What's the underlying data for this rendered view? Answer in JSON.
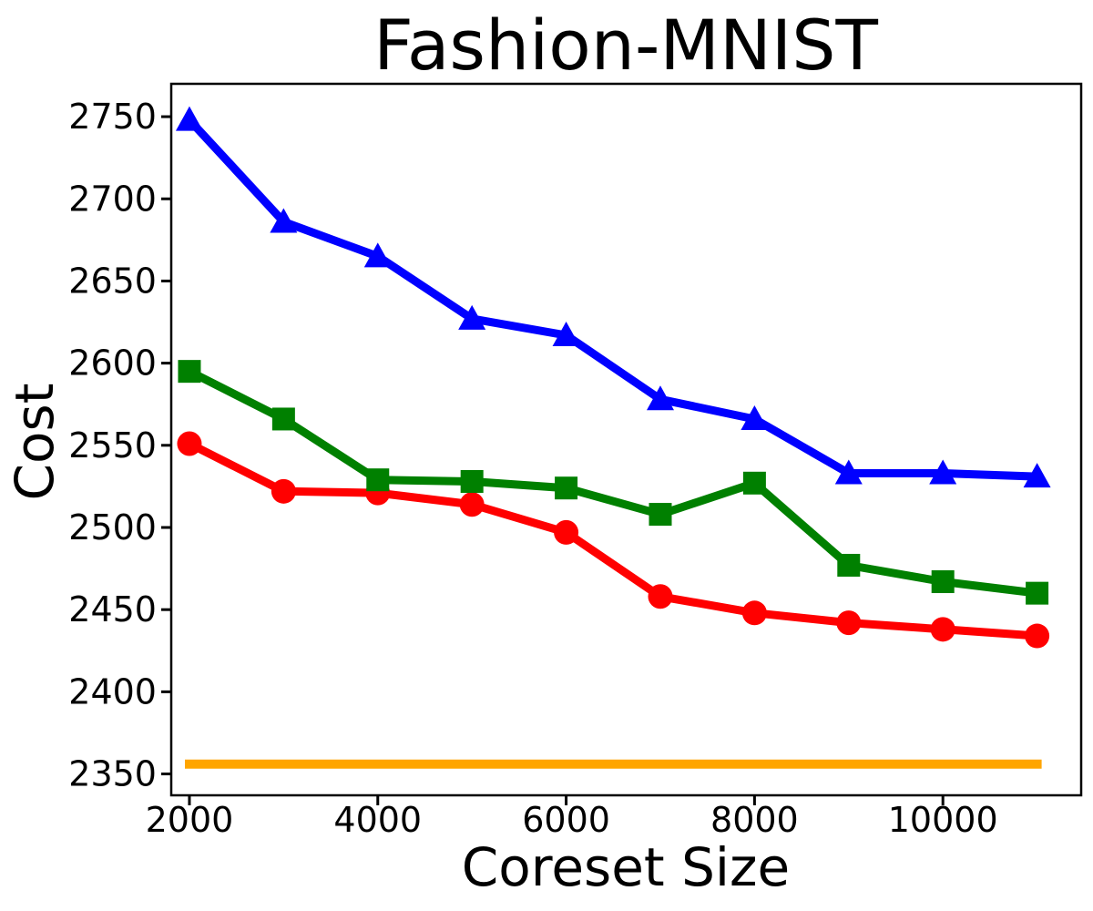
{
  "figure": {
    "background": "#ffffff",
    "axes_frame_color": "#000000"
  },
  "chart_data": {
    "type": "line",
    "title": "Fashion-MNIST",
    "xlabel": "Coreset Size",
    "ylabel": "Cost",
    "grid": false,
    "legend": "none",
    "frame": true,
    "x": [
      2000,
      3000,
      4000,
      5000,
      6000,
      7000,
      8000,
      9000,
      10000,
      11000
    ],
    "series": [
      {
        "name": "orange-baseline",
        "marker": "none",
        "color": "#FFA500",
        "values": [
          2356,
          2356,
          2356,
          2356,
          2356,
          2356,
          2356,
          2356,
          2356,
          2356
        ]
      },
      {
        "name": "red-circle-series",
        "marker": "circle",
        "color": "#FF0000",
        "values": [
          2551,
          2522,
          2521,
          2514,
          2497,
          2458,
          2448,
          2442,
          2438,
          2434
        ]
      },
      {
        "name": "green-square-series",
        "marker": "square",
        "color": "#008000",
        "values": [
          2595,
          2566,
          2529,
          2528,
          2524,
          2508,
          2527,
          2477,
          2467,
          2460
        ]
      },
      {
        "name": "blue-triangle-series",
        "marker": "triangle-up",
        "color": "#0000FF",
        "values": [
          2748,
          2686,
          2665,
          2627,
          2617,
          2578,
          2566,
          2533,
          2533,
          2531
        ]
      }
    ],
    "xticks": [
      2000,
      4000,
      6000,
      8000,
      10000
    ],
    "yticks": [
      2350,
      2400,
      2450,
      2500,
      2550,
      2600,
      2650,
      2700,
      2750
    ],
    "xlim": [
      1807,
      11468
    ],
    "ylim": [
      2337,
      2770
    ]
  }
}
